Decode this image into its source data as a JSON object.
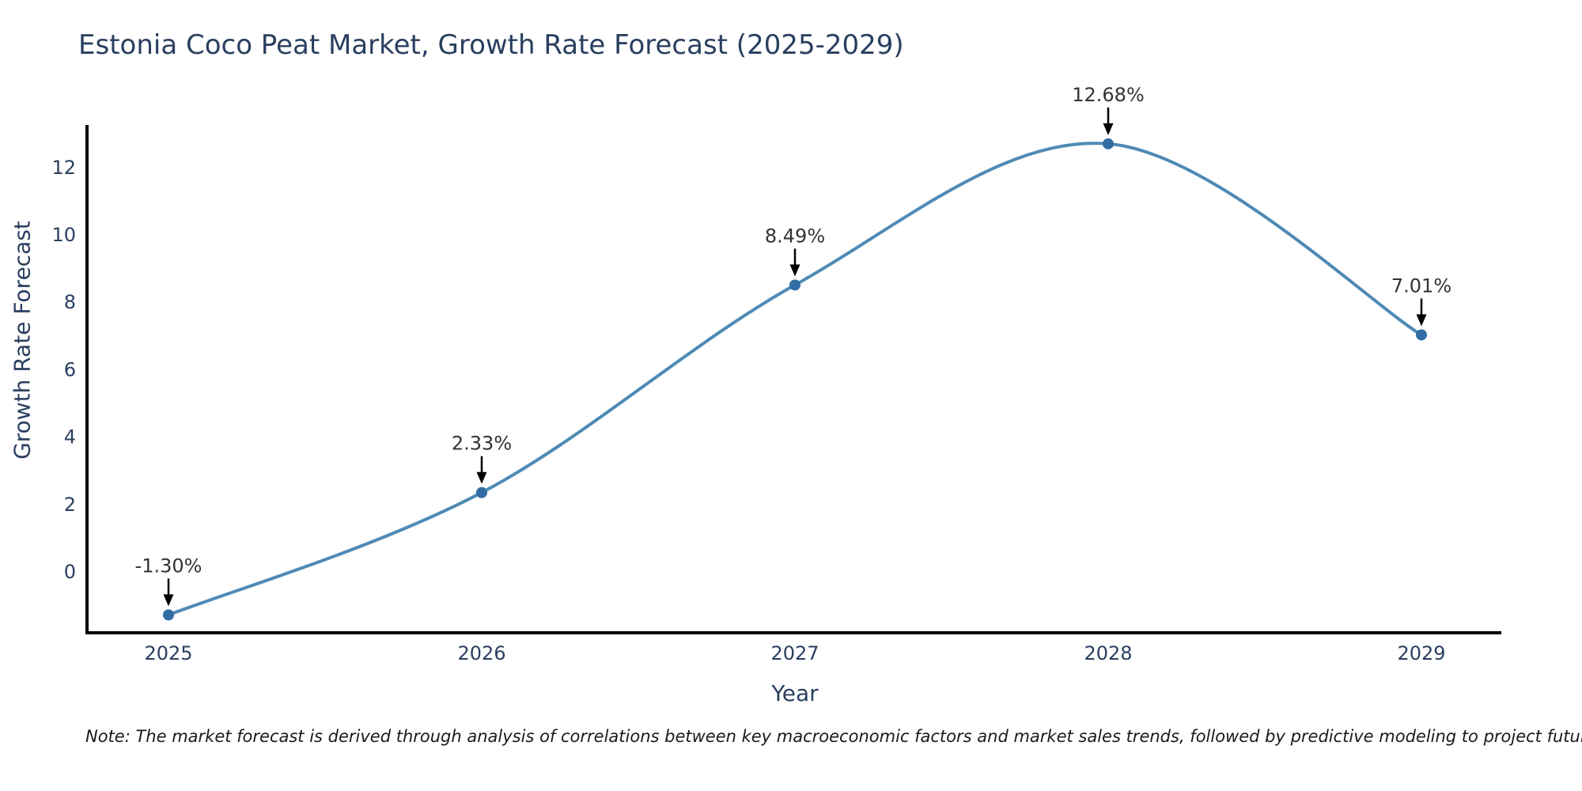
{
  "chart": {
    "title": "Estonia Coco Peat Market, Growth Rate Forecast (2025-2029)",
    "xlabel": "Year",
    "ylabel": "Growth Rate Forecast",
    "note": "Note: The market forecast is derived through analysis of correlations between key macroeconomic factors and market sales trends, followed by predictive modeling to project future sales"
  },
  "chart_data": {
    "type": "line",
    "line_shape": "spline",
    "title": "Estonia Coco Peat Market, Growth Rate Forecast (2025-2029)",
    "xlabel": "Year",
    "ylabel": "Growth Rate Forecast",
    "x": [
      2025,
      2026,
      2027,
      2028,
      2029
    ],
    "values": [
      -1.3,
      2.33,
      8.49,
      12.68,
      7.01
    ],
    "point_labels": [
      "-1.30%",
      "2.33%",
      "8.49%",
      "12.68%",
      "7.01%"
    ],
    "yticks": [
      0,
      2,
      4,
      6,
      8,
      10,
      12
    ],
    "ylim": [
      -1.83,
      13.2
    ],
    "grid": false,
    "legend": "none",
    "annotation_style": "down-arrow",
    "colors": {
      "line": "#4f8ab5",
      "marker": "#316da4",
      "axis": "#000000",
      "tick_text": "#2a3f5f",
      "title_text": "#2a3f5f",
      "annotation_text": "#333333",
      "arrow": "#000000",
      "background": "#ffffff"
    }
  }
}
